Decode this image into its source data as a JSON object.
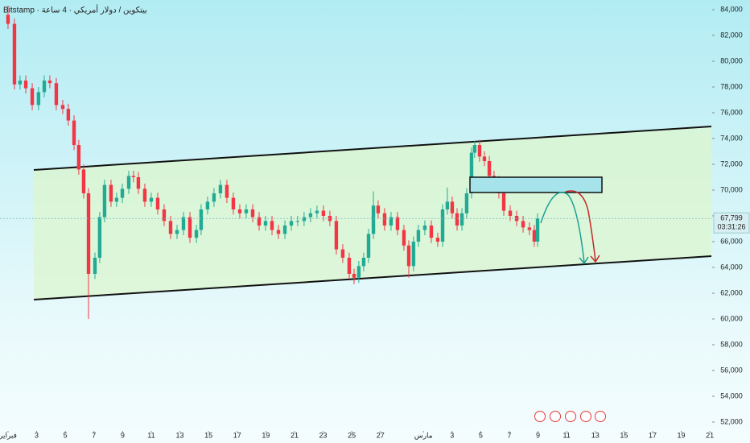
{
  "chart_data": {
    "type": "candlestick",
    "title": "Bitstamp · بيتكوين / دولار أمريكي · 4 ساعة",
    "x": [
      0,
      0.45,
      0.84,
      1.24,
      1.69,
      2.13,
      2.53,
      2.92,
      3.37,
      3.82,
      4.21,
      4.61,
      4.94,
      5.28,
      5.62,
      6.07,
      6.4,
      6.74,
      7.19,
      7.58,
      7.98,
      8.43,
      8.76,
      9.1,
      9.55,
      10,
      10.45,
      10.9,
      11.35,
      11.8,
      12.25,
      12.7,
      13.15,
      13.48,
      13.93,
      14.38,
      14.83,
      15.28,
      15.73,
      16.18,
      16.63,
      17.08,
      17.53,
      17.98,
      18.43,
      18.88,
      19.33,
      19.78,
      20.22,
      20.67,
      21.12,
      21.57,
      22.02,
      22.47,
      22.92,
      23.37,
      23.82,
      24.16,
      24.49,
      24.83,
      25.17,
      25.51,
      25.84,
      26.29,
      26.74,
      27.19,
      27.64,
      27.98,
      28.31,
      28.65,
      29.1,
      29.55,
      30,
      30.34,
      30.67,
      31.01,
      31.35,
      31.69,
      32.02,
      32.36,
      32.58,
      32.92,
      33.26,
      33.6,
      33.93,
      34.27,
      34.61,
      35.06,
      35.51,
      35.96,
      36.4,
      36.74,
      36.97
    ],
    "open": [
      83600,
      82900,
      78200,
      78500,
      77900,
      76600,
      77600,
      78500,
      78300,
      76600,
      76300,
      75400,
      73500,
      71600,
      69750,
      63500,
      64750,
      67900,
      70400,
      69100,
      69400,
      70100,
      71100,
      71000,
      70100,
      69100,
      69400,
      68500,
      67600,
      66600,
      66900,
      67900,
      66300,
      66900,
      68500,
      69100,
      69750,
      70400,
      69400,
      68500,
      68200,
      68500,
      67900,
      67250,
      67600,
      66900,
      66600,
      67250,
      67600,
      67600,
      67900,
      68200,
      68400,
      68000,
      67600,
      65400,
      64750,
      63500,
      63200,
      64100,
      64750,
      66600,
      68800,
      68200,
      67250,
      67900,
      66900,
      65700,
      64100,
      66000,
      66900,
      67250,
      66300,
      66000,
      68500,
      69100,
      68200,
      67250,
      68200,
      69750,
      72900,
      73500,
      72600,
      72250,
      71100,
      70700,
      69750,
      68400,
      68000,
      67600,
      67100,
      66900,
      66000
    ],
    "high": [
      84300,
      83300,
      78900,
      78900,
      78300,
      78000,
      78900,
      78900,
      78700,
      77000,
      76700,
      75800,
      73900,
      72000,
      70150,
      65150,
      68300,
      70800,
      70800,
      69800,
      70500,
      71500,
      71500,
      71400,
      70500,
      69800,
      69800,
      68900,
      68000,
      67300,
      68300,
      68300,
      67300,
      68900,
      69500,
      70150,
      70800,
      70800,
      69800,
      68900,
      68900,
      68900,
      68300,
      68000,
      68000,
      67300,
      67650,
      68000,
      68000,
      68300,
      68600,
      68800,
      68800,
      68400,
      68000,
      65800,
      65150,
      63900,
      64500,
      65150,
      67000,
      69900,
      69200,
      68600,
      68300,
      68300,
      67300,
      66100,
      66400,
      67300,
      67650,
      67650,
      66700,
      68900,
      70200,
      69500,
      68600,
      68600,
      70150,
      73300,
      73800,
      73900,
      73000,
      72650,
      71500,
      71100,
      70150,
      68800,
      68400,
      68000,
      67500,
      67300,
      68200
    ],
    "low": [
      82500,
      77800,
      77800,
      77500,
      76200,
      76200,
      77200,
      77900,
      76200,
      75900,
      75000,
      73100,
      71200,
      69350,
      60000,
      63100,
      64350,
      67500,
      68700,
      68700,
      69000,
      69700,
      70600,
      69700,
      68700,
      68700,
      68100,
      67200,
      66200,
      66200,
      66500,
      65900,
      65900,
      66500,
      68100,
      68700,
      69350,
      69000,
      68100,
      67800,
      67800,
      67500,
      66850,
      66850,
      66500,
      66200,
      66200,
      66850,
      67200,
      67200,
      67500,
      67800,
      67600,
      67200,
      65000,
      64350,
      63100,
      62700,
      62800,
      63700,
      64350,
      66200,
      67800,
      66850,
      66850,
      66500,
      65300,
      63200,
      63700,
      65600,
      66500,
      65900,
      65600,
      65600,
      68100,
      67800,
      66850,
      66850,
      67800,
      69350,
      72500,
      72200,
      71850,
      70700,
      70300,
      69350,
      68000,
      67600,
      67200,
      66700,
      66500,
      65600,
      65600
    ],
    "close": [
      82900,
      78200,
      78500,
      77900,
      76600,
      77600,
      78500,
      78300,
      76600,
      76300,
      75400,
      73500,
      71600,
      69750,
      63500,
      64750,
      67900,
      70400,
      69100,
      69400,
      70100,
      71100,
      71000,
      70100,
      69100,
      69400,
      68500,
      67600,
      66600,
      66900,
      67900,
      66300,
      66900,
      68500,
      69100,
      69750,
      70400,
      69400,
      68500,
      68200,
      68500,
      67900,
      67250,
      67600,
      66900,
      66600,
      67250,
      67600,
      67600,
      67900,
      68200,
      68400,
      68000,
      67600,
      65400,
      64750,
      63500,
      63200,
      64100,
      64750,
      66600,
      68800,
      68200,
      67250,
      67900,
      66900,
      65700,
      64100,
      66000,
      66900,
      67250,
      66300,
      66000,
      68500,
      69100,
      68200,
      67250,
      68200,
      69750,
      72900,
      73500,
      72600,
      72250,
      71100,
      70700,
      69750,
      68400,
      68000,
      67600,
      67100,
      66900,
      66000,
      67799
    ],
    "up_color": "#22ab94",
    "down_color": "#f23645",
    "xlim": [
      -0.56,
      49.16
    ],
    "xticks": [
      {
        "value": 0,
        "label": "فبراير"
      },
      {
        "value": 2,
        "label": "3"
      },
      {
        "value": 4,
        "label": "5"
      },
      {
        "value": 6,
        "label": "7"
      },
      {
        "value": 8,
        "label": "9"
      },
      {
        "value": 10,
        "label": "11"
      },
      {
        "value": 12,
        "label": "13"
      },
      {
        "value": 14,
        "label": "15"
      },
      {
        "value": 16,
        "label": "17"
      },
      {
        "value": 18,
        "label": "19"
      },
      {
        "value": 20,
        "label": "21"
      },
      {
        "value": 22,
        "label": "23"
      },
      {
        "value": 24,
        "label": "25"
      },
      {
        "value": 26,
        "label": "27"
      },
      {
        "value": 29,
        "label": "مارس"
      },
      {
        "value": 31,
        "label": "3"
      },
      {
        "value": 33,
        "label": "5"
      },
      {
        "value": 35,
        "label": "7"
      },
      {
        "value": 37,
        "label": "9"
      },
      {
        "value": 39,
        "label": "11"
      },
      {
        "value": 41,
        "label": "13"
      },
      {
        "value": 43,
        "label": "15"
      },
      {
        "value": 45,
        "label": "17"
      },
      {
        "value": 47,
        "label": "19"
      },
      {
        "value": 49,
        "label": "21"
      }
    ],
    "ylim": [
      51500,
      84750
    ],
    "yticks": [
      {
        "value": 52000,
        "label": "52,000"
      },
      {
        "value": 54000,
        "label": "54,000"
      },
      {
        "value": 56000,
        "label": "56,000"
      },
      {
        "value": 58000,
        "label": "58,000"
      },
      {
        "value": 60000,
        "label": "60,000"
      },
      {
        "value": 62000,
        "label": "62,000"
      },
      {
        "value": 64000,
        "label": "64,000"
      },
      {
        "value": 66000,
        "label": "66,000"
      },
      {
        "value": 68000,
        "label": "68,000"
      },
      {
        "value": 70000,
        "label": "70,000"
      },
      {
        "value": 72000,
        "label": "72,000"
      },
      {
        "value": 74000,
        "label": "74,000"
      },
      {
        "value": 76000,
        "label": "76,000"
      },
      {
        "value": 78000,
        "label": "78,000"
      },
      {
        "value": 80000,
        "label": "80,000"
      },
      {
        "value": 82000,
        "label": "82,000"
      },
      {
        "value": 84000,
        "label": "84,000"
      }
    ],
    "last_price": {
      "value": 67799,
      "label": "67,799"
    },
    "countdown": "03:31:26"
  }
}
